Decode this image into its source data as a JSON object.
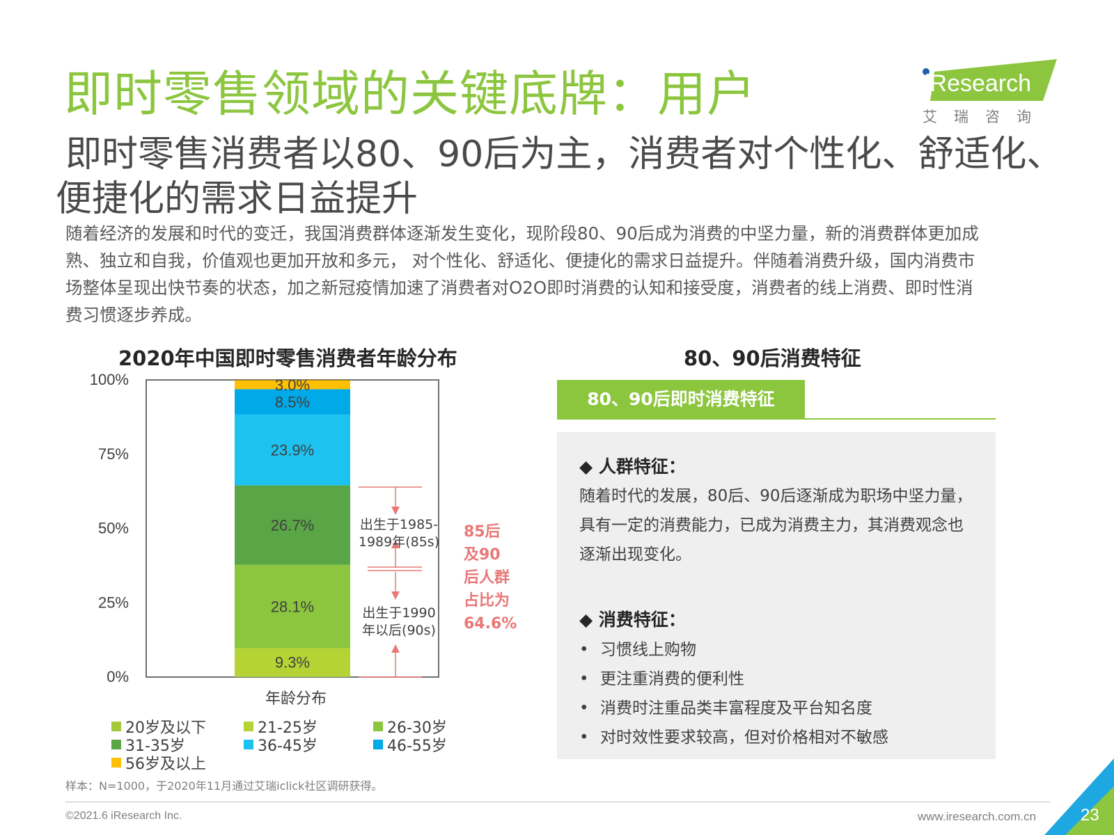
{
  "header": {
    "title": "即时零售领域的关键底牌：用户",
    "subtitle_lines": [
      "即时零售消费者以80、90后为主，消费者对个性化、舒适化、",
      "便捷化的需求日益提升"
    ]
  },
  "logo": {
    "text": "iResearch",
    "cn": "艾瑞咨询"
  },
  "intro_lines": [
    "随着经济的发展和时代的变迁，我国消费群体逐渐发生变化，现阶段80、90后成为消费的中坚力量，新的消费群体更加成",
    "熟、独立和自我，价值观也更加开放和多元， 对个性化、舒适化、便捷化的需求日益提升。伴随着消费升级，国内消费市",
    "场整体呈现出快节奏的状态，加之新冠疫情加速了消费者对O2O即时消费的认知和接受度，消费者的线上消费、即时性消",
    "费习惯逐步养成。"
  ],
  "chart_data": {
    "type": "bar",
    "stacked": true,
    "title": "2020年中国即时零售消费者年龄分布",
    "xlabel": "年龄分布",
    "categories": [
      "年龄分布"
    ],
    "ylim": [
      0,
      100
    ],
    "yticks": [
      "0%",
      "25%",
      "50%",
      "75%",
      "100%"
    ],
    "series": [
      {
        "name": "20岁及以下",
        "values": [
          0.4
        ],
        "label": "",
        "color": "#a5c93b"
      },
      {
        "name": "21-25岁",
        "values": [
          9.3
        ],
        "label": "9.3%",
        "color": "#b5d334"
      },
      {
        "name": "26-30岁",
        "values": [
          28.1
        ],
        "label": "28.1%",
        "color": "#8cc63f"
      },
      {
        "name": "31-35岁",
        "values": [
          26.7
        ],
        "label": "26.7%",
        "color": "#5aa646"
      },
      {
        "name": "36-45岁",
        "values": [
          23.9
        ],
        "label": "23.9%",
        "color": "#1ec2f0"
      },
      {
        "name": "46-55岁",
        "values": [
          8.5
        ],
        "label": "8.5%",
        "color": "#00a9e8"
      },
      {
        "name": "56岁及以上",
        "values": [
          3.0
        ],
        "label": "3.0%",
        "color": "#ffc000"
      }
    ],
    "annotations": {
      "born_85s_lines": [
        "出生于1985-",
        "1989年(85s)"
      ],
      "born_90s_lines": [
        "出生于1990",
        "年以后(90s)"
      ],
      "callout_lines": [
        "85后",
        "及90",
        "后人群",
        "占比为",
        "64.6%"
      ]
    }
  },
  "note": "样本：N=1000，于2020年11月通过艾瑞iclick社区调研获得。",
  "right": {
    "title": "80、90后消费特征",
    "tab_label": "80、90后即时消费特征",
    "crowd_heading": "◆ 人群特征：",
    "crowd_lines": [
      "随着时代的发展，80后、90后逐渐成为职场中坚力量，",
      "具有一定的消费能力，已成为消费主力，其消费观念也",
      "逐渐出现变化。"
    ],
    "consume_heading": "◆ 消费特征：",
    "bullets": [
      "习惯线上购物",
      "更注重消费的便利性",
      "消费时注重品类丰富程度及平台知名度",
      "对时效性要求较高，但对价格相对不敏感"
    ],
    "bullet_char": "•"
  },
  "footer": {
    "copyright": "©2021.6 iResearch Inc.",
    "website": "www.iresearch.com.cn",
    "page": "23"
  },
  "colors": {
    "brand_green": "#8cc63f",
    "callout_red": "#e87878",
    "corner_blue": "#1ea7e1"
  }
}
